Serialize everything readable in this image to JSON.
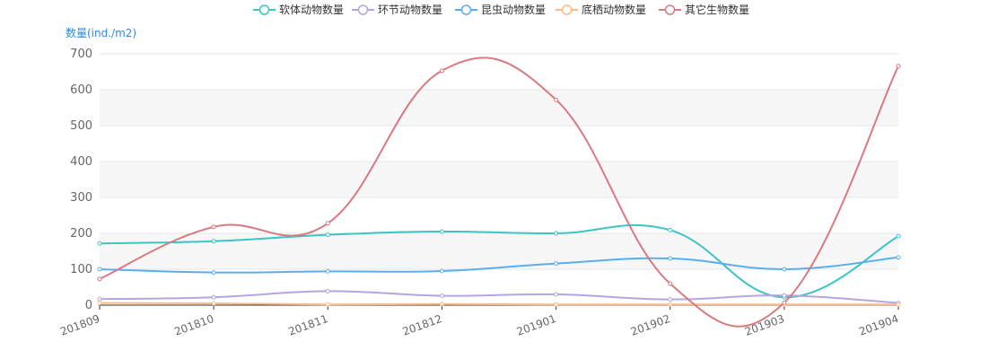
{
  "chart_data": {
    "type": "line",
    "ylabel": "数量(ind./m2)",
    "xlabel": "",
    "x": [
      "201809",
      "201810",
      "201811",
      "201812",
      "201901",
      "201902",
      "201903",
      "201904"
    ],
    "ylim": [
      0,
      700
    ],
    "yticks": [
      0,
      100,
      200,
      300,
      400,
      500,
      600,
      700
    ],
    "grid": "horizontal, alternating light bands",
    "legend_position": "top-center",
    "series": [
      {
        "name": "软体动物数量",
        "color": "#3cc4c7",
        "values": [
          172,
          178,
          196,
          205,
          200,
          209,
          22,
          192
        ]
      },
      {
        "name": "环节动物数量",
        "color": "#b5a6dd",
        "values": [
          17,
          22,
          39,
          26,
          30,
          16,
          27,
          6
        ]
      },
      {
        "name": "昆虫动物数量",
        "color": "#5aaef0",
        "values": [
          100,
          91,
          94,
          95,
          116,
          130,
          100,
          133
        ]
      },
      {
        "name": "底栖动物数量",
        "color": "#ffb987",
        "values": [
          6,
          5,
          2,
          3,
          2,
          2,
          2,
          2
        ]
      },
      {
        "name": "其它生物数量",
        "color": "#d87a80",
        "values": [
          73,
          218,
          228,
          653,
          572,
          60,
          7,
          666
        ]
      }
    ]
  }
}
